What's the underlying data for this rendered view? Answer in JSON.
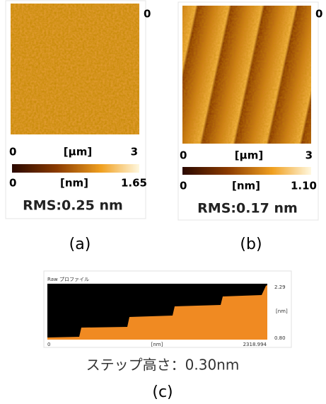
{
  "panel_a": {
    "corner_label": "0",
    "x_axis": {
      "min": "0",
      "unit": "[μm]",
      "max": "3"
    },
    "colorbar": {
      "min": "0",
      "unit": "[nm]",
      "max": "1.65"
    },
    "rms": "RMS:0.25 nm",
    "caption": "(a)"
  },
  "panel_b": {
    "corner_label": "0",
    "x_axis": {
      "min": "0",
      "unit": "[μm]",
      "max": "3"
    },
    "colorbar": {
      "min": "0",
      "unit": "[nm]",
      "max": "1.10"
    },
    "rms": "RMS:0.17 nm",
    "caption": "(b)"
  },
  "panel_c": {
    "title": "Raw プロファイル",
    "y_axis": {
      "max": "2.29",
      "unit": "[nm]",
      "min": "0.80"
    },
    "x_axis": {
      "min": "0",
      "unit": "[nm]",
      "max": "2318.994"
    },
    "step_height": "ステップ高さ：0.30nm",
    "caption": "(c)"
  }
}
